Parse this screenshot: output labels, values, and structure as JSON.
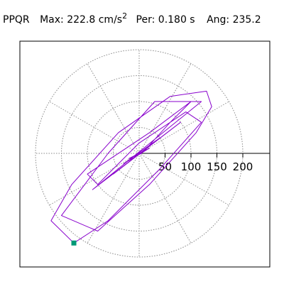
{
  "chart_data": {
    "type": "polar",
    "title": {
      "station": "PPQR",
      "max": "Max:  222.8 cm/s",
      "max_exp": "2",
      "per": "Per:  0.180 s",
      "ang": "Ang: 235.2"
    },
    "rlim": [
      0,
      200
    ],
    "rticks": [
      50,
      100,
      150,
      200
    ],
    "grid": true,
    "series": [
      {
        "color": "#8800cc",
        "x": [
          0,
          20,
          -30,
          40,
          -50,
          80,
          -90,
          120,
          30,
          -60,
          -120,
          -150,
          -80,
          20,
          110,
          140,
          130,
          60,
          -40,
          -130,
          -170,
          -126,
          -60,
          40,
          120,
          90,
          0,
          -80,
          -100,
          20,
          100,
          60,
          10,
          -20,
          5
        ],
        "y": [
          0,
          10,
          -20,
          30,
          -40,
          60,
          -70,
          100,
          100,
          0,
          -80,
          -120,
          -150,
          -60,
          40,
          90,
          120,
          110,
          40,
          -60,
          -130,
          -173,
          -130,
          -30,
          60,
          80,
          20,
          -60,
          -40,
          40,
          100,
          60,
          5,
          -10,
          0
        ]
      }
    ],
    "peak": {
      "x": -126,
      "y": -173,
      "color": "#009977"
    }
  }
}
